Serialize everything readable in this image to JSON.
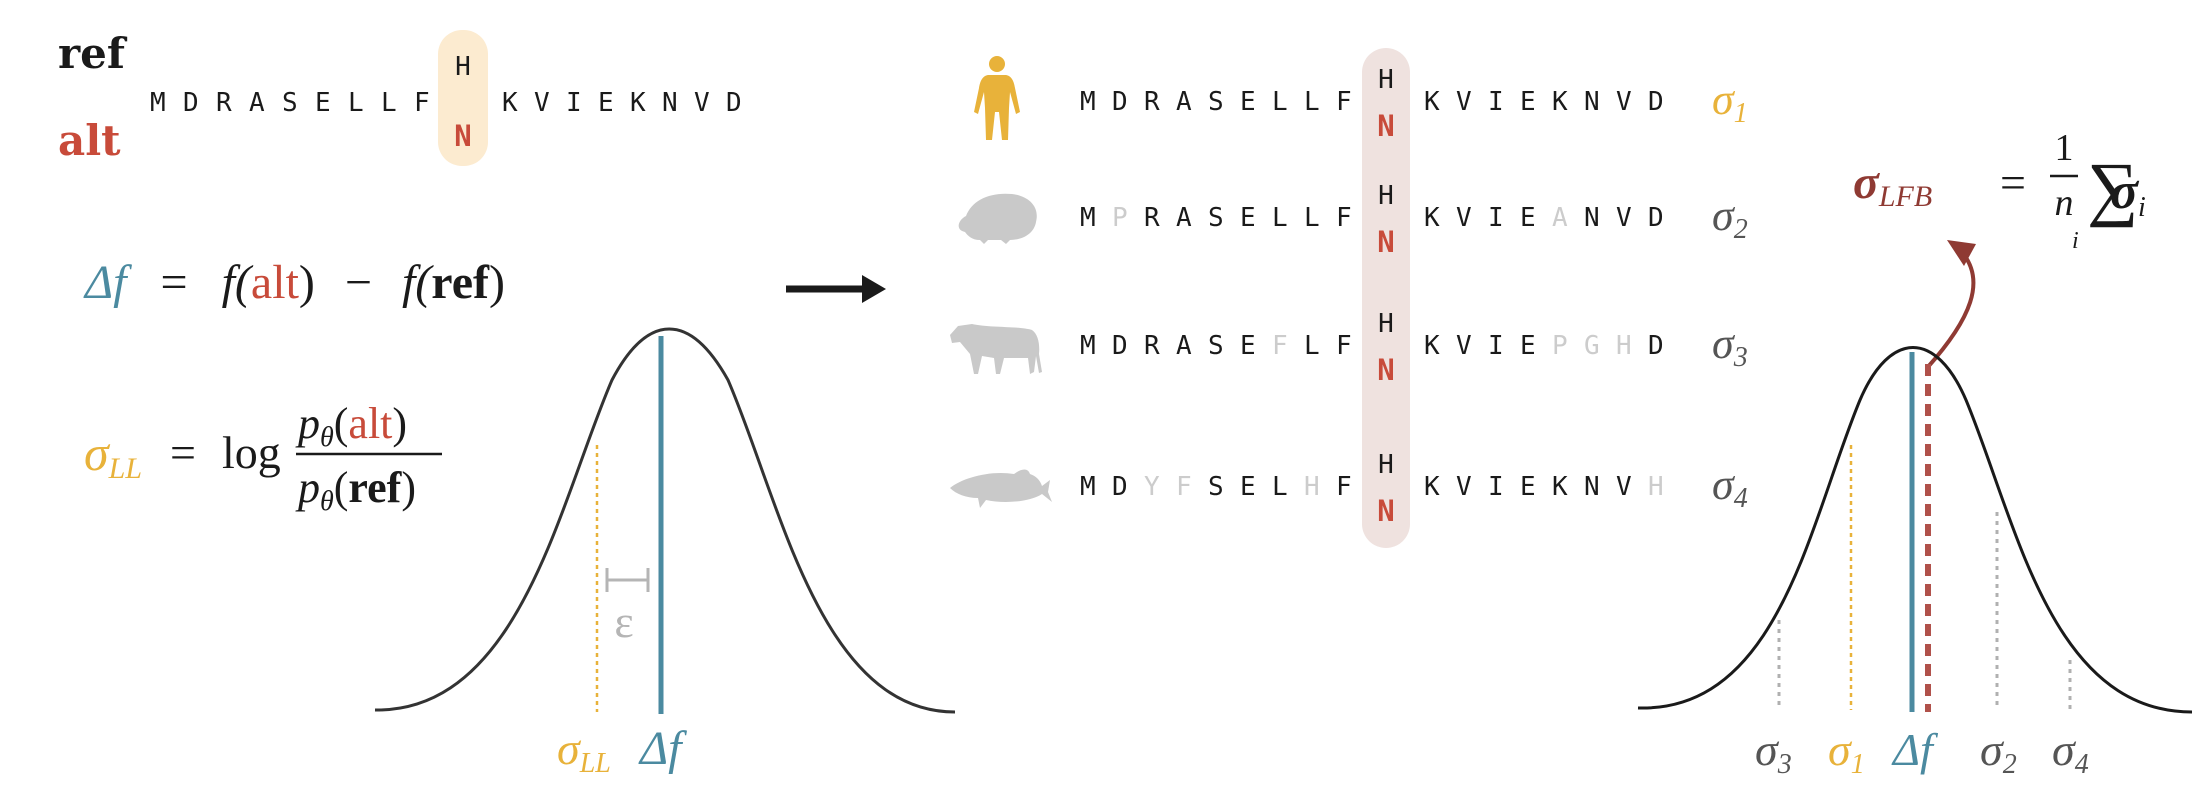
{
  "colors": {
    "ink": "#1a1a1a",
    "alt_red": "#c84b3a",
    "delta_teal": "#4b8aa0",
    "ll_gold": "#e8b23a",
    "lfb_brown": "#8f3a33",
    "grey_sigma": "#555555",
    "faded": "#cccccc",
    "epsilon_grey": "#b5b5b5",
    "highlight_left": "#fcebd0",
    "highlight_right": "#efe2df",
    "silhouette": "#c9c9c9"
  },
  "left_panel": {
    "ref_label": "ref",
    "alt_label": "alt",
    "sequence_before": [
      "M",
      "D",
      "R",
      "A",
      "S",
      "E",
      "L",
      "L",
      "F"
    ],
    "variant_ref": "H",
    "variant_alt": "N",
    "sequence_after": [
      "K",
      "V",
      "I",
      "E",
      "K",
      "N",
      "V",
      "D"
    ],
    "eq_delta": {
      "delta": "Δf",
      "equals": "=",
      "f1": "f(",
      "alt": "alt",
      "close1": ")",
      "minus": "−",
      "f2": "f(",
      "ref": "ref",
      "close2": ")"
    },
    "eq_ll": {
      "sigma": "σ",
      "sub": "LL",
      "equals": "=",
      "log": "log",
      "num_p": "p",
      "num_theta": "θ",
      "num_open": "(",
      "num_arg": "alt",
      "num_close": ")",
      "den_p": "p",
      "den_theta": "θ",
      "den_open": "(",
      "den_arg": "ref",
      "den_close": ")"
    },
    "epsilon": "ε",
    "axis_sigma": "σ",
    "axis_sigma_sub": "LL",
    "axis_delta": "Δf"
  },
  "arrow_icon": "right-arrow-icon",
  "right_panel": {
    "species": [
      {
        "icon": "human-icon",
        "letters": [
          [
            "M",
            0
          ],
          [
            "D",
            0
          ],
          [
            "R",
            0
          ],
          [
            "A",
            0
          ],
          [
            "S",
            0
          ],
          [
            "E",
            0
          ],
          [
            "L",
            0
          ],
          [
            "L",
            0
          ],
          [
            "F",
            0
          ]
        ],
        "after": [
          [
            "K",
            0
          ],
          [
            "V",
            0
          ],
          [
            "I",
            0
          ],
          [
            "E",
            0
          ],
          [
            "K",
            0
          ],
          [
            "N",
            0
          ],
          [
            "V",
            0
          ],
          [
            "D",
            0
          ]
        ],
        "sigma": "σ",
        "sub": "1",
        "sigma_color": "#e8b23a"
      },
      {
        "icon": "hedgehog-icon",
        "letters": [
          [
            "M",
            0
          ],
          [
            "P",
            1
          ],
          [
            "R",
            0
          ],
          [
            "A",
            0
          ],
          [
            "S",
            0
          ],
          [
            "E",
            0
          ],
          [
            "L",
            0
          ],
          [
            "L",
            0
          ],
          [
            "F",
            0
          ]
        ],
        "after": [
          [
            "K",
            0
          ],
          [
            "V",
            0
          ],
          [
            "I",
            0
          ],
          [
            "E",
            0
          ],
          [
            "A",
            1
          ],
          [
            "N",
            0
          ],
          [
            "V",
            0
          ],
          [
            "D",
            0
          ]
        ],
        "sigma": "σ",
        "sub": "2",
        "sigma_color": "#555555"
      },
      {
        "icon": "cow-icon",
        "letters": [
          [
            "M",
            0
          ],
          [
            "D",
            0
          ],
          [
            "R",
            0
          ],
          [
            "A",
            0
          ],
          [
            "S",
            0
          ],
          [
            "E",
            0
          ],
          [
            "F",
            1
          ],
          [
            "L",
            0
          ],
          [
            "F",
            0
          ]
        ],
        "after": [
          [
            "K",
            0
          ],
          [
            "V",
            0
          ],
          [
            "I",
            0
          ],
          [
            "E",
            0
          ],
          [
            "P",
            1
          ],
          [
            "G",
            1
          ],
          [
            "H",
            1
          ],
          [
            "D",
            0
          ]
        ],
        "sigma": "σ",
        "sub": "3",
        "sigma_color": "#555555"
      },
      {
        "icon": "dolphin-icon",
        "letters": [
          [
            "M",
            0
          ],
          [
            "D",
            0
          ],
          [
            "Y",
            1
          ],
          [
            "F",
            1
          ],
          [
            "S",
            0
          ],
          [
            "E",
            0
          ],
          [
            "L",
            0
          ],
          [
            "H",
            1
          ],
          [
            "F",
            0
          ]
        ],
        "after": [
          [
            "K",
            0
          ],
          [
            "V",
            0
          ],
          [
            "I",
            0
          ],
          [
            "E",
            0
          ],
          [
            "K",
            0
          ],
          [
            "N",
            0
          ],
          [
            "V",
            0
          ],
          [
            "H",
            1
          ]
        ],
        "sigma": "σ",
        "sub": "4",
        "sigma_color": "#555555"
      }
    ],
    "variant_ref": "H",
    "variant_alt": "N",
    "eq_lfb": {
      "sigma": "σ",
      "sub": "LFB",
      "equals": "=",
      "num": "1",
      "den": "n",
      "sum": "∑",
      "index": "i",
      "sigma_i": "σ",
      "sub_i": "i"
    },
    "axis_labels": [
      {
        "sigma": "σ",
        "sub": "3",
        "color": "#555555"
      },
      {
        "sigma": "σ",
        "sub": "1",
        "color": "#e8b23a"
      },
      {
        "sigma": "Δf",
        "sub": "",
        "color": "#4b8aa0"
      },
      {
        "sigma": "σ",
        "sub": "2",
        "color": "#555555"
      },
      {
        "sigma": "σ",
        "sub": "4",
        "color": "#555555"
      }
    ]
  }
}
